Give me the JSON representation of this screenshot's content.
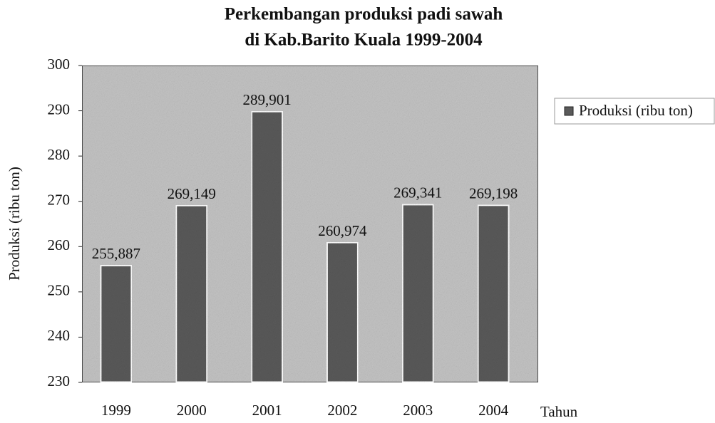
{
  "chart_data": {
    "type": "bar",
    "title": [
      "Perkembangan produksi padi sawah",
      "di Kab.Barito Kuala 1999-2004"
    ],
    "xlabel": "Tahun",
    "ylabel": "Produksi (ribu ton)",
    "categories": [
      "1999",
      "2000",
      "2001",
      "2002",
      "2003",
      "2004"
    ],
    "series": [
      {
        "name": "Produksi (ribu ton)",
        "color": "#5a5a5a",
        "values": [
          255.887,
          269.149,
          289.901,
          260.974,
          269.341,
          269.198
        ],
        "value_labels": [
          "255,887",
          "269,149",
          "289,901",
          "260,974",
          "269,341",
          "269,198"
        ]
      }
    ],
    "ylim": [
      230,
      300
    ],
    "yticks": [
      230,
      240,
      250,
      260,
      270,
      280,
      290,
      300
    ],
    "legend": "right"
  }
}
